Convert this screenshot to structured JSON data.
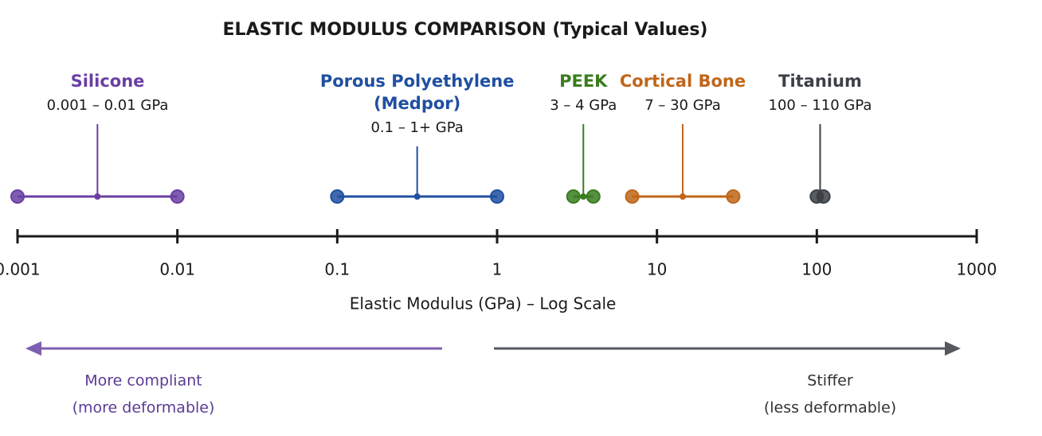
{
  "chart_data": {
    "type": "range",
    "title": "ELASTIC MODULUS COMPARISON (Typical Values)",
    "xlabel": "Elastic Modulus (GPa) – Log Scale",
    "xscale": "log",
    "xlim": [
      0.001,
      1000
    ],
    "xticks": [
      0.001,
      0.01,
      0.1,
      1,
      10,
      100,
      1000
    ],
    "series": [
      {
        "name": "Silicone",
        "color": "#6a3fa3",
        "values": [
          0.001,
          0.01
        ],
        "label": "0.001 – 0.01 GPa"
      },
      {
        "name": "Porous Polyethylene (Medpor)",
        "color": "#1f4fa0",
        "values": [
          0.1,
          1
        ],
        "label": "0.1 – 1+ GPa"
      },
      {
        "name": "PEEK",
        "color": "#3a7d1e",
        "values": [
          3,
          4
        ],
        "label": "3 – 4 GPa"
      },
      {
        "name": "Cortical Bone",
        "color": "#c0661a",
        "values": [
          7,
          30
        ],
        "label": "7 – 30 GPa"
      },
      {
        "name": "Titanium",
        "color": "#3c4046",
        "values": [
          100,
          110
        ],
        "label": "100 – 110 GPa"
      }
    ],
    "annotations": [
      "More compliant",
      "(more deformable)",
      "Stiffer",
      "(less deformable)"
    ]
  }
}
